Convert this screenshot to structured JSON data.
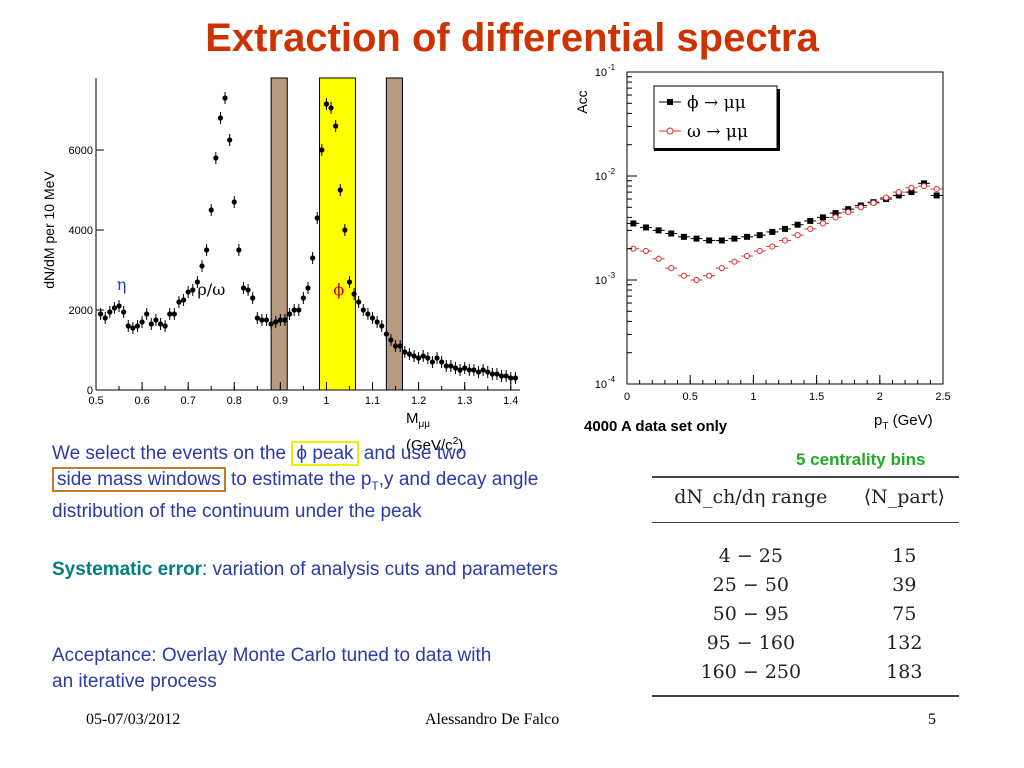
{
  "slide": {
    "title": "Extraction of differential spectra",
    "date": "05-07/03/2012",
    "author": "Alessandro De Falco",
    "page": "5"
  },
  "text": {
    "p1_before": "We select the events on the ",
    "p1_phi": "ϕ peak",
    "p1_mid": " and use two",
    "p1_side": "side mass windows",
    "p1_after_a": " to estimate the p",
    "p1_sub": "T",
    "p1_after_b": ",y and decay angle distribution of the continuum under the peak",
    "p2_label": "Systematic error",
    "p2_rest": ": variation of analysis cuts and parameters",
    "p3": "Acceptance: Overlay Monte Carlo tuned to data with an iterative process",
    "note_4000": "4000 A data set only",
    "note_bins": "5 centrality bins"
  },
  "colors": {
    "title": "#cc3300",
    "body": "#2a3aa8",
    "teal": "#008080",
    "green": "#22aa22",
    "phi_band": "#ffff00",
    "side_band": "#b89a80",
    "omega_series": "#dd3333"
  },
  "table": {
    "headers": [
      "dN_ch/dη range",
      "⟨N_part⟩"
    ],
    "rows": [
      [
        "4 − 25",
        "15"
      ],
      [
        "25 − 50",
        "39"
      ],
      [
        "50 − 95",
        "75"
      ],
      [
        "95 − 160",
        "132"
      ],
      [
        "160 − 250",
        "183"
      ]
    ]
  },
  "chart_data": [
    {
      "type": "scatter",
      "title": "",
      "xlabel_main": "M",
      "xlabel_sub": "μμ",
      "xlabel_unit_a": "(GeV/c",
      "xlabel_unit_sup": "2",
      "xlabel_unit_b": ")",
      "ylabel": "dN/dM per 10 MeV",
      "xlim": [
        0.5,
        1.42
      ],
      "ylim": [
        0,
        7800
      ],
      "xticks": [
        0.5,
        0.6,
        0.7,
        0.8,
        0.9,
        1,
        1.1,
        1.2,
        1.3,
        1.4
      ],
      "yticks": [
        0,
        2000,
        4000,
        6000
      ],
      "bands": [
        {
          "x0": 0.88,
          "x1": 0.915,
          "color": "#b89a80"
        },
        {
          "x0": 0.985,
          "x1": 1.063,
          "color": "#ffff00"
        },
        {
          "x0": 1.13,
          "x1": 1.165,
          "color": "#b89a80"
        }
      ],
      "annotations": [
        {
          "text": "η",
          "x": 0.545,
          "y": 2500,
          "color": "#1a3ad0"
        },
        {
          "text": "ρ/ω",
          "x": 0.72,
          "y": 2380,
          "color": "#000000"
        },
        {
          "text": "ϕ",
          "x": 1.015,
          "y": 2380,
          "color": "#cc0000"
        }
      ],
      "series": [
        {
          "x": [
            0.51,
            0.52,
            0.53,
            0.54,
            0.55,
            0.56,
            0.57,
            0.58,
            0.59,
            0.6,
            0.61,
            0.62,
            0.63,
            0.64,
            0.65,
            0.66,
            0.67,
            0.68,
            0.69,
            0.7,
            0.71,
            0.72,
            0.73,
            0.74,
            0.75,
            0.76,
            0.77,
            0.78,
            0.79,
            0.8,
            0.81,
            0.82,
            0.83,
            0.84,
            0.85,
            0.86,
            0.87,
            0.88,
            0.89,
            0.9,
            0.91,
            0.92,
            0.93,
            0.94,
            0.95,
            0.96,
            0.97,
            0.98,
            0.99,
            1.0,
            1.01,
            1.02,
            1.03,
            1.04,
            1.05,
            1.06,
            1.07,
            1.08,
            1.09,
            1.1,
            1.11,
            1.12,
            1.13,
            1.14,
            1.15,
            1.16,
            1.17,
            1.18,
            1.19,
            1.2,
            1.21,
            1.22,
            1.23,
            1.24,
            1.25,
            1.26,
            1.27,
            1.28,
            1.29,
            1.3,
            1.31,
            1.32,
            1.33,
            1.34,
            1.35,
            1.36,
            1.37,
            1.38,
            1.39,
            1.4,
            1.41
          ],
          "y": [
            1900,
            1800,
            1950,
            2050,
            2100,
            1950,
            1600,
            1550,
            1600,
            1700,
            1900,
            1650,
            1750,
            1650,
            1600,
            1900,
            1900,
            2200,
            2250,
            2450,
            2500,
            2700,
            3100,
            3500,
            4500,
            5800,
            6800,
            7300,
            6250,
            4700,
            3500,
            2550,
            2500,
            2300,
            1800,
            1750,
            1750,
            1650,
            1700,
            1750,
            1750,
            1900,
            2000,
            2000,
            2300,
            2550,
            3300,
            4300,
            6000,
            7150,
            7050,
            6600,
            5000,
            4000,
            2700,
            2400,
            2200,
            2000,
            1900,
            1800,
            1700,
            1600,
            1400,
            1250,
            1100,
            1100,
            950,
            900,
            850,
            800,
            850,
            800,
            700,
            800,
            700,
            600,
            600,
            550,
            500,
            550,
            500,
            500,
            450,
            500,
            450,
            400,
            400,
            350,
            350,
            300,
            300
          ]
        }
      ]
    },
    {
      "type": "scatter",
      "title": "",
      "xlabel_main": "p",
      "xlabel_sub": "T",
      "xlabel_unit": " (GeV)",
      "ylabel": "Acc",
      "xlim": [
        0,
        2.5
      ],
      "ylim": [
        0.0001,
        0.1
      ],
      "yscale": "log",
      "xticks": [
        0,
        0.5,
        1,
        1.5,
        2,
        2.5
      ],
      "yticks": [
        0.0001,
        0.001,
        0.01,
        0.1
      ],
      "ytick_base": "10",
      "ytick_exps": [
        "-4",
        "-3",
        "-2",
        "-1"
      ],
      "legend": "top-left",
      "series": [
        {
          "name": "ϕ → μμ",
          "color": "#000000",
          "marker": "filled-square",
          "x": [
            0.05,
            0.15,
            0.25,
            0.35,
            0.45,
            0.55,
            0.65,
            0.75,
            0.85,
            0.95,
            1.05,
            1.15,
            1.25,
            1.35,
            1.45,
            1.55,
            1.65,
            1.75,
            1.85,
            1.95,
            2.05,
            2.15,
            2.25,
            2.35,
            2.45
          ],
          "y": [
            0.0035,
            0.0032,
            0.003,
            0.0028,
            0.0026,
            0.0025,
            0.0024,
            0.0024,
            0.0025,
            0.0026,
            0.0027,
            0.0029,
            0.0031,
            0.0034,
            0.0037,
            0.004,
            0.0044,
            0.0048,
            0.0052,
            0.0056,
            0.006,
            0.0065,
            0.007,
            0.0085,
            0.0065
          ]
        },
        {
          "name": "ω → μμ",
          "color": "#dd3333",
          "marker": "open-circle",
          "x": [
            0.05,
            0.15,
            0.25,
            0.35,
            0.45,
            0.55,
            0.65,
            0.75,
            0.85,
            0.95,
            1.05,
            1.15,
            1.25,
            1.35,
            1.45,
            1.55,
            1.65,
            1.75,
            1.85,
            1.95,
            2.05,
            2.15,
            2.25,
            2.35,
            2.45
          ],
          "y": [
            0.002,
            0.0019,
            0.0016,
            0.0013,
            0.0011,
            0.001,
            0.0011,
            0.0013,
            0.0015,
            0.0017,
            0.0019,
            0.0021,
            0.0024,
            0.0027,
            0.0031,
            0.0035,
            0.004,
            0.0045,
            0.005,
            0.0055,
            0.0062,
            0.007,
            0.0077,
            0.008,
            0.0075
          ]
        }
      ]
    }
  ]
}
